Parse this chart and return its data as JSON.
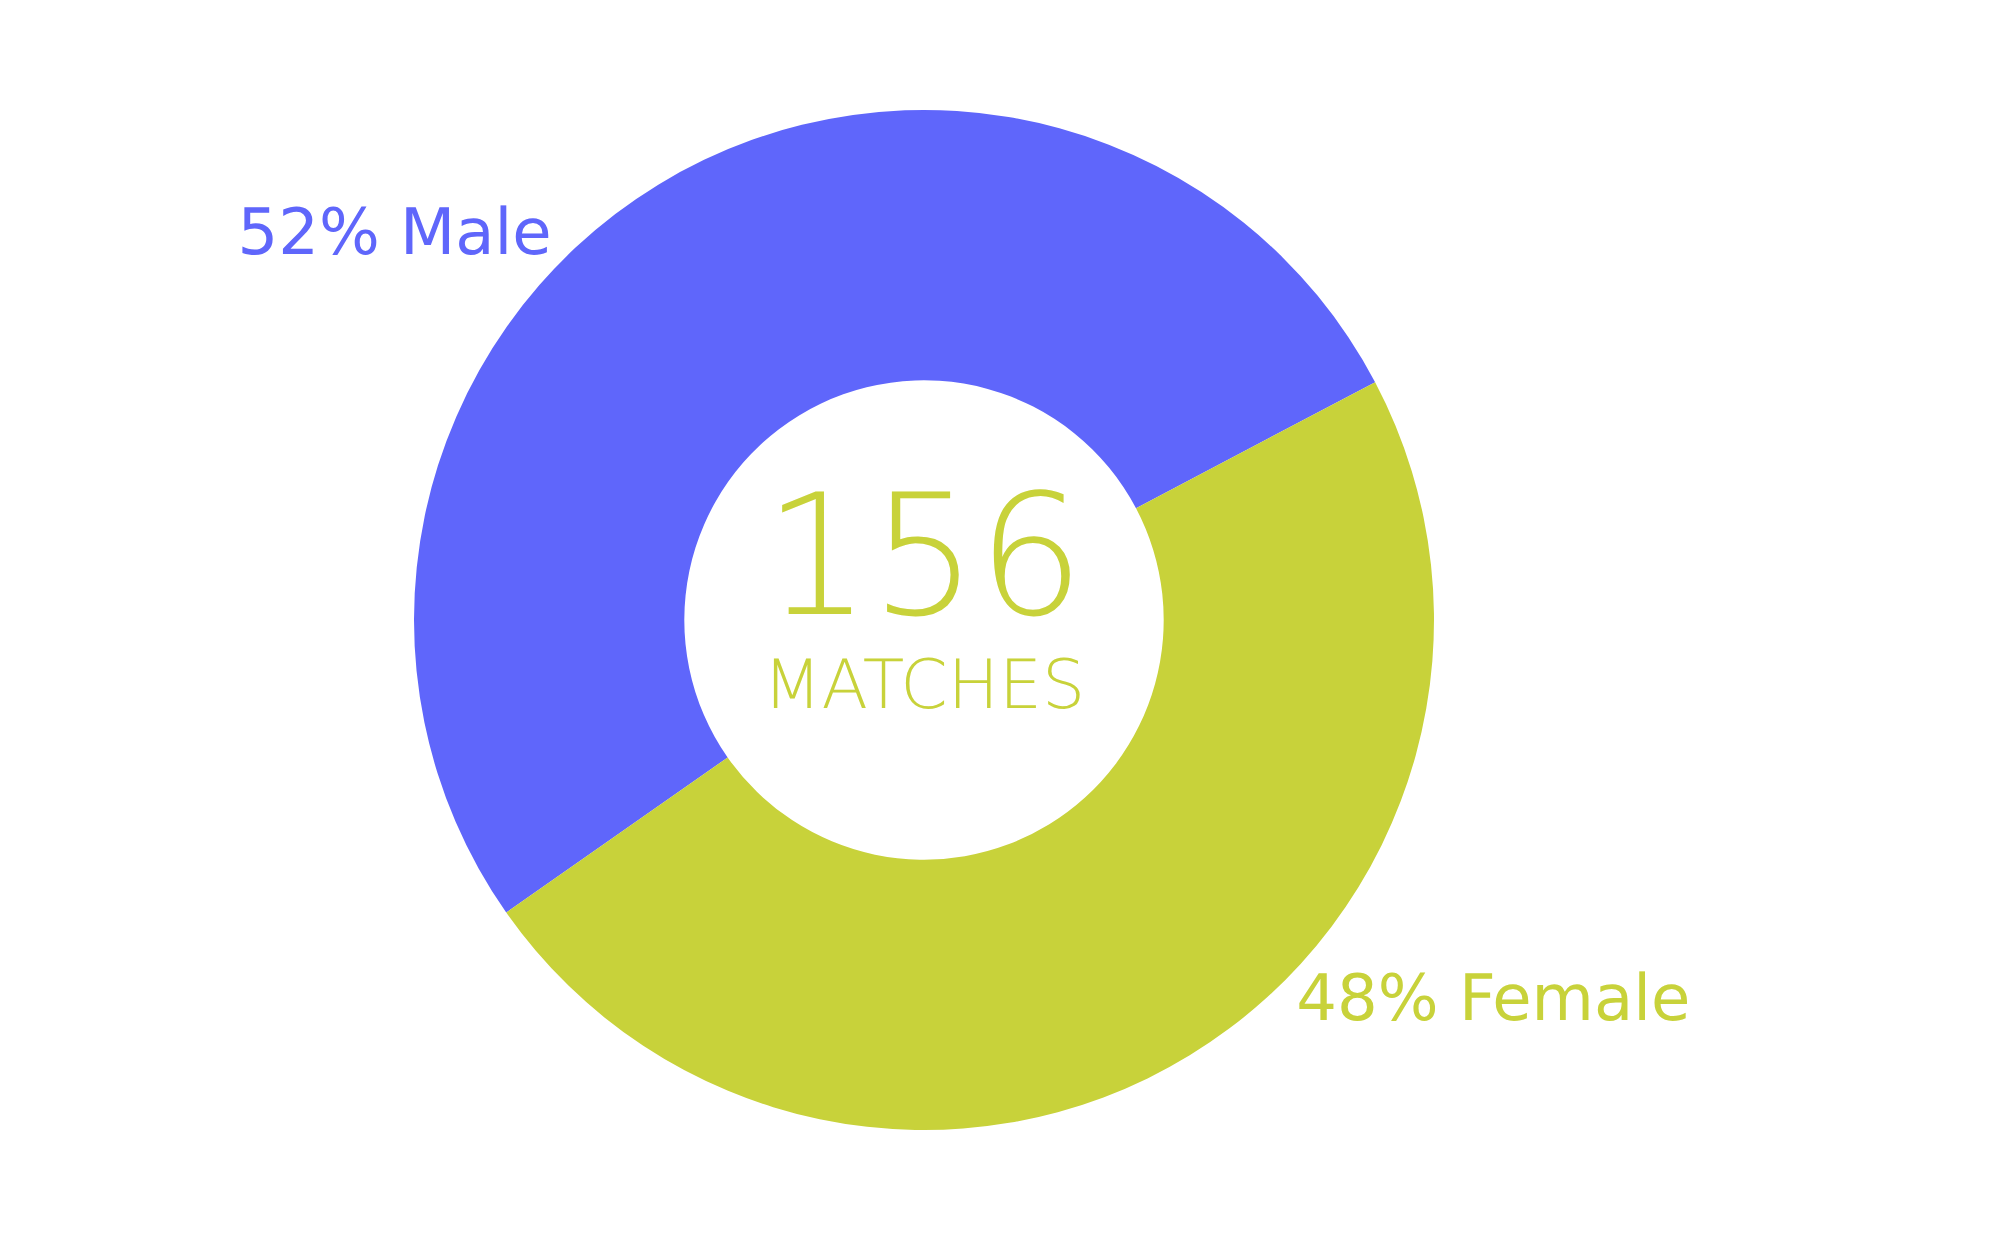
{
  "chart_data": {
    "type": "donut",
    "categories": [
      "Male",
      "Female"
    ],
    "values": [
      52,
      48
    ],
    "value_labels": [
      "52%",
      "48%"
    ],
    "colors": [
      "#5f66fb",
      "#c8d23a"
    ],
    "annotations": [
      "156",
      "MATCHES"
    ],
    "legend": false
  }
}
